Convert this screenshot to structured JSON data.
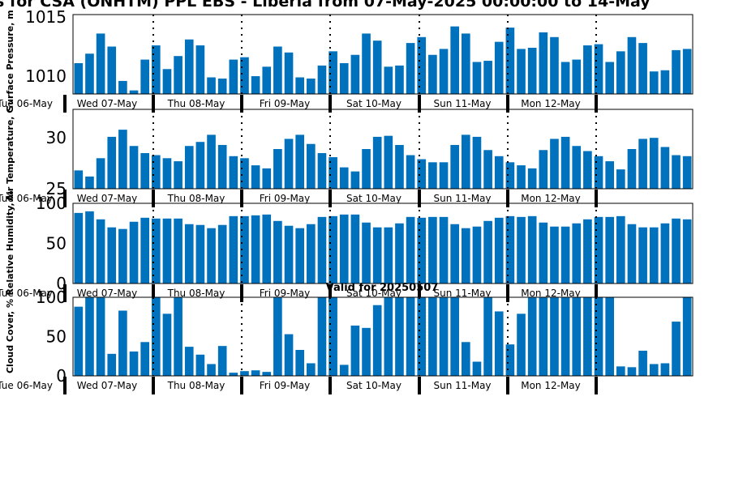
{
  "title": "s for CSA (ONHTM) PPL EBS  - Liberia from 07-May-2025 00:00:00 to 14-May",
  "subtitle": "Valid for 20250507",
  "colors": {
    "bar": "#0072bd",
    "axis": "#000000"
  },
  "days": [
    "Wed 07-May",
    "Thu 08-May",
    "Fri 09-May",
    "Sat 10-May",
    "Sun 11-May",
    "Mon 12-May"
  ],
  "first_day_label": "Tue 06-May",
  "chart_data": [
    {
      "type": "bar",
      "ylabel": "Surface Pressure, m",
      "yticks": [
        1010,
        1015
      ],
      "ylim": [
        1008.5,
        1015.2
      ],
      "values": [
        1011.1,
        1011.9,
        1013.6,
        1012.5,
        1009.6,
        1008.8,
        1011.4,
        1012.6,
        1010.6,
        1011.7,
        1013.1,
        1012.6,
        1009.9,
        1009.8,
        1011.4,
        1011.6,
        1010.0,
        1010.8,
        1012.5,
        1012.0,
        1009.9,
        1009.8,
        1010.9,
        1012.1,
        1011.1,
        1011.8,
        1013.6,
        1013.0,
        1010.8,
        1010.9,
        1012.8,
        1013.3,
        1011.8,
        1012.3,
        1014.2,
        1013.6,
        1011.2,
        1011.3,
        1012.9,
        1014.1,
        1012.3,
        1012.4,
        1013.7,
        1013.3,
        1011.2,
        1011.4,
        1012.6,
        1012.7,
        1011.2,
        1012.1,
        1013.3,
        1012.8,
        1010.4,
        1010.5,
        1012.2,
        1012.3
      ]
    },
    {
      "type": "bar",
      "ylabel": "Air Temperature, C",
      "yticks": [
        25,
        30
      ],
      "ylim": [
        25,
        32.8
      ],
      "values": [
        26.8,
        26.2,
        28.0,
        30.1,
        30.8,
        29.2,
        28.5,
        28.3,
        28.0,
        27.7,
        29.2,
        29.6,
        30.3,
        29.3,
        28.2,
        28.0,
        27.3,
        27.0,
        28.9,
        29.9,
        30.3,
        29.4,
        28.5,
        28.1,
        27.1,
        26.7,
        28.9,
        30.1,
        30.2,
        29.3,
        28.3,
        27.9,
        27.6,
        27.6,
        29.3,
        30.3,
        30.1,
        28.8,
        28.2,
        27.6,
        27.3,
        27.0,
        28.8,
        29.9,
        30.1,
        29.2,
        28.7,
        28.2,
        27.7,
        26.9,
        28.9,
        29.9,
        30.0,
        29.1,
        28.3,
        28.2
      ]
    },
    {
      "type": "bar",
      "ylabel": "Relative Humidity, %",
      "yticks": [
        0,
        50,
        100
      ],
      "ylim": [
        0,
        100
      ],
      "values": [
        88,
        90,
        80,
        70,
        68,
        77,
        82,
        81,
        81,
        81,
        74,
        73,
        69,
        73,
        84,
        84,
        85,
        86,
        78,
        72,
        69,
        74,
        83,
        84,
        86,
        86,
        76,
        70,
        70,
        75,
        83,
        82,
        83,
        83,
        74,
        69,
        71,
        78,
        82,
        84,
        83,
        84,
        76,
        71,
        71,
        75,
        80,
        83,
        83,
        84,
        74,
        70,
        70,
        75,
        81,
        80
      ]
    },
    {
      "type": "bar",
      "ylabel": "Cloud Cover, %",
      "yticks": [
        0,
        50,
        100
      ],
      "ylim": [
        0,
        100
      ],
      "values": [
        88,
        100,
        100,
        28,
        83,
        31,
        43,
        100,
        79,
        100,
        37,
        27,
        15,
        38,
        4,
        6,
        7,
        5,
        100,
        53,
        33,
        16,
        100,
        100,
        14,
        64,
        61,
        90,
        100,
        100,
        100,
        100,
        100,
        100,
        100,
        43,
        18,
        100,
        82,
        40,
        79,
        100,
        100,
        100,
        100,
        100,
        100,
        100,
        100,
        12,
        11,
        32,
        15,
        16,
        69,
        100
      ]
    }
  ]
}
